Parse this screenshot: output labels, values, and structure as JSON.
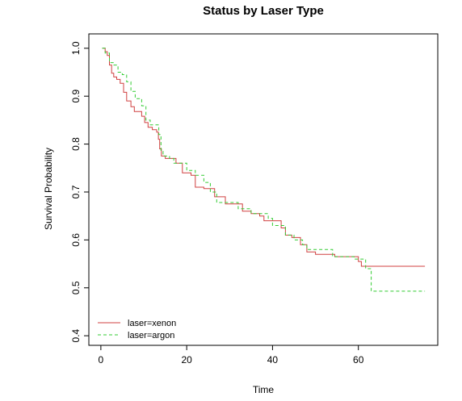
{
  "chart_data": {
    "type": "line",
    "title": "Status by Laser Type",
    "xlabel": "Time",
    "ylabel": "Survival Probability",
    "xlim": [
      -2.8,
      78.5
    ],
    "ylim": [
      0.38,
      1.03
    ],
    "xticks": [
      0,
      20,
      40,
      60
    ],
    "yticks": [
      0.4,
      0.5,
      0.6,
      0.7,
      0.8,
      0.9,
      1.0
    ],
    "ytick_labels": [
      "0.4",
      "0.5",
      "0.6",
      "0.7",
      "0.8",
      "0.9",
      "1.0"
    ],
    "step": true,
    "grid": false,
    "legend_position": "bottom-left",
    "series": [
      {
        "name": "laser=xenon",
        "color": "#d04040",
        "dash": "solid",
        "points": [
          [
            0.3,
            1.0
          ],
          [
            1.0,
            0.993
          ],
          [
            1.5,
            0.985
          ],
          [
            2.0,
            0.965
          ],
          [
            2.5,
            0.948
          ],
          [
            3.0,
            0.94
          ],
          [
            3.7,
            0.935
          ],
          [
            4.5,
            0.927
          ],
          [
            5.3,
            0.908
          ],
          [
            6.0,
            0.89
          ],
          [
            7.0,
            0.878
          ],
          [
            7.8,
            0.868
          ],
          [
            9.5,
            0.858
          ],
          [
            10.2,
            0.845
          ],
          [
            11.0,
            0.835
          ],
          [
            12.0,
            0.83
          ],
          [
            13.0,
            0.825
          ],
          [
            13.4,
            0.81
          ],
          [
            13.7,
            0.79
          ],
          [
            14.1,
            0.775
          ],
          [
            15.0,
            0.77
          ],
          [
            17.5,
            0.76
          ],
          [
            19.0,
            0.74
          ],
          [
            21.0,
            0.735
          ],
          [
            22.0,
            0.71
          ],
          [
            24.0,
            0.707
          ],
          [
            26.5,
            0.69
          ],
          [
            29.0,
            0.675
          ],
          [
            33.0,
            0.66
          ],
          [
            35.0,
            0.655
          ],
          [
            37.0,
            0.65
          ],
          [
            38.0,
            0.64
          ],
          [
            42.0,
            0.625
          ],
          [
            43.0,
            0.61
          ],
          [
            44.5,
            0.605
          ],
          [
            46.5,
            0.59
          ],
          [
            48.0,
            0.575
          ],
          [
            50.0,
            0.57
          ],
          [
            54.5,
            0.565
          ],
          [
            60.0,
            0.555
          ],
          [
            60.7,
            0.545
          ],
          [
            75.5,
            0.545
          ]
        ]
      },
      {
        "name": "laser=argon",
        "color": "#33cc33",
        "dash": "dashed",
        "points": [
          [
            0.3,
            1.0
          ],
          [
            1.0,
            0.99
          ],
          [
            2.0,
            0.97
          ],
          [
            3.0,
            0.965
          ],
          [
            4.0,
            0.95
          ],
          [
            5.0,
            0.945
          ],
          [
            6.0,
            0.93
          ],
          [
            7.0,
            0.91
          ],
          [
            8.0,
            0.895
          ],
          [
            9.5,
            0.88
          ],
          [
            10.5,
            0.85
          ],
          [
            11.5,
            0.84
          ],
          [
            13.5,
            0.82
          ],
          [
            14.0,
            0.785
          ],
          [
            14.5,
            0.775
          ],
          [
            16.0,
            0.77
          ],
          [
            17.0,
            0.76
          ],
          [
            20.0,
            0.745
          ],
          [
            22.0,
            0.735
          ],
          [
            24.0,
            0.72
          ],
          [
            25.5,
            0.7
          ],
          [
            27.0,
            0.678
          ],
          [
            32.0,
            0.665
          ],
          [
            35.0,
            0.655
          ],
          [
            39.0,
            0.645
          ],
          [
            40.0,
            0.63
          ],
          [
            43.0,
            0.61
          ],
          [
            45.0,
            0.6
          ],
          [
            47.0,
            0.59
          ],
          [
            48.0,
            0.58
          ],
          [
            54.0,
            0.565
          ],
          [
            59.0,
            0.56
          ],
          [
            61.7,
            0.54
          ],
          [
            63.0,
            0.493
          ],
          [
            75.5,
            0.493
          ]
        ]
      }
    ]
  }
}
